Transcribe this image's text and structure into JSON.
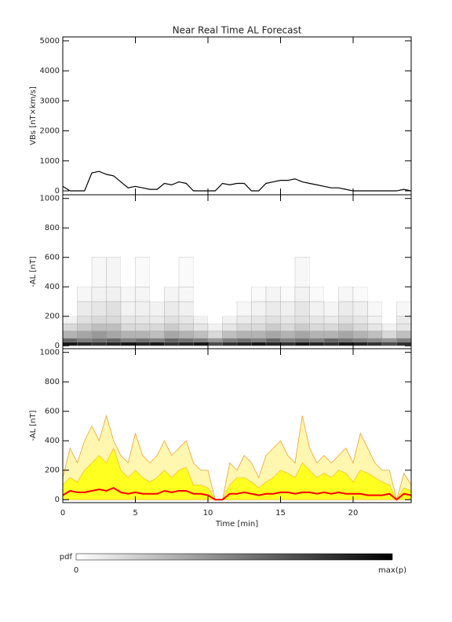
{
  "chart_data": [
    {
      "type": "line",
      "title": "Near Real Time AL Forecast",
      "ylabel": "VBs [nT×km/s]",
      "x": [
        0,
        0.5,
        1,
        1.5,
        2,
        2.5,
        3,
        3.5,
        4,
        4.5,
        5,
        5.5,
        6,
        6.5,
        7,
        7.5,
        8,
        8.5,
        9,
        9.5,
        10,
        10.5,
        11,
        11.5,
        12,
        12.5,
        13,
        13.5,
        14,
        14.5,
        15,
        15.5,
        16,
        16.5,
        17,
        17.5,
        18,
        18.5,
        19,
        19.5,
        20,
        20.5,
        21,
        21.5,
        22,
        22.5,
        23,
        23.5,
        24
      ],
      "values": [
        150,
        0,
        0,
        0,
        600,
        650,
        550,
        500,
        300,
        100,
        150,
        100,
        50,
        50,
        250,
        200,
        300,
        250,
        0,
        0,
        0,
        0,
        250,
        200,
        250,
        250,
        0,
        0,
        250,
        300,
        350,
        350,
        400,
        300,
        250,
        200,
        150,
        100,
        100,
        50,
        0,
        0,
        0,
        0,
        0,
        0,
        0,
        50,
        0
      ],
      "color": "#000000",
      "xlim": [
        0,
        24
      ],
      "xticks": [
        0,
        5,
        10,
        15,
        20
      ],
      "ylim": [
        -130,
        5130
      ],
      "yticks": [
        0,
        1000,
        2000,
        3000,
        4000,
        5000
      ]
    },
    {
      "type": "heatmap",
      "ylabel": "-AL [nT]",
      "x_bins": [
        0,
        1,
        2,
        3,
        4,
        5,
        6,
        7,
        8,
        9,
        10,
        11,
        12,
        13,
        14,
        15,
        16,
        17,
        18,
        19,
        20,
        21,
        22,
        23,
        24
      ],
      "y_bins": [
        0,
        25,
        50,
        100,
        150,
        200,
        300,
        400,
        600
      ],
      "z": [
        [
          0.9,
          0.85,
          0.8,
          0.85,
          0.9,
          0.85,
          0.9,
          0.8,
          0.85,
          0.9,
          0.7,
          0.8,
          0.85,
          0.9,
          0.85,
          0.8,
          0.9,
          0.85,
          0.8,
          0.9,
          0.85,
          0.8,
          0.7,
          0.8
        ],
        [
          0.6,
          0.5,
          0.55,
          0.6,
          0.5,
          0.55,
          0.5,
          0.6,
          0.55,
          0.5,
          0.4,
          0.5,
          0.55,
          0.5,
          0.6,
          0.5,
          0.55,
          0.5,
          0.6,
          0.55,
          0.5,
          0.45,
          0.4,
          0.5
        ],
        [
          0.3,
          0.35,
          0.4,
          0.35,
          0.3,
          0.3,
          0.25,
          0.35,
          0.3,
          0.25,
          0.15,
          0.25,
          0.3,
          0.3,
          0.35,
          0.3,
          0.35,
          0.3,
          0.3,
          0.35,
          0.3,
          0.25,
          0.15,
          0.25
        ],
        [
          0.15,
          0.2,
          0.25,
          0.25,
          0.15,
          0.15,
          0.15,
          0.2,
          0.15,
          0.1,
          0.05,
          0.1,
          0.15,
          0.15,
          0.2,
          0.15,
          0.2,
          0.15,
          0.15,
          0.2,
          0.15,
          0.1,
          0.05,
          0.1
        ],
        [
          0.05,
          0.12,
          0.15,
          0.15,
          0.1,
          0.1,
          0.08,
          0.12,
          0.1,
          0.05,
          0,
          0.05,
          0.08,
          0.1,
          0.12,
          0.1,
          0.12,
          0.1,
          0.08,
          0.12,
          0.1,
          0.05,
          0,
          0.08
        ],
        [
          0,
          0.08,
          0.1,
          0.12,
          0.05,
          0.06,
          0.05,
          0.08,
          0.06,
          0,
          0,
          0,
          0.03,
          0.05,
          0.08,
          0.06,
          0.1,
          0.05,
          0.04,
          0.08,
          0.06,
          0.03,
          0,
          0.03
        ],
        [
          0,
          0.03,
          0.05,
          0.06,
          0.03,
          0.04,
          0,
          0.04,
          0.03,
          0,
          0,
          0,
          0,
          0.02,
          0.04,
          0.02,
          0.05,
          0.02,
          0,
          0.03,
          0.02,
          0,
          0,
          0
        ],
        [
          0,
          0,
          0.03,
          0.04,
          0,
          0.02,
          0,
          0,
          0.02,
          0,
          0,
          0,
          0,
          0,
          0,
          0,
          0.03,
          0,
          0,
          0,
          0,
          0,
          0,
          0
        ]
      ],
      "colorbar": {
        "label": "pdf",
        "min_label": "0",
        "max_label": "max(p)"
      },
      "xlim": [
        0,
        24
      ],
      "xticks": [
        0,
        5,
        10,
        15,
        20
      ],
      "ylim": [
        -20,
        1025
      ],
      "yticks": [
        0,
        200,
        400,
        600,
        800,
        1000
      ]
    },
    {
      "type": "band",
      "ylabel": "-AL [nT]",
      "xlabel": "Time [min]",
      "x": [
        0,
        0.5,
        1,
        1.5,
        2,
        2.5,
        3,
        3.5,
        4,
        4.5,
        5,
        5.5,
        6,
        6.5,
        7,
        7.5,
        8,
        8.5,
        9,
        9.5,
        10,
        10.5,
        11,
        11.5,
        12,
        12.5,
        13,
        13.5,
        14,
        14.5,
        15,
        15.5,
        16,
        16.5,
        17,
        17.5,
        18,
        18.5,
        19,
        19.5,
        20,
        20.5,
        21,
        21.5,
        22,
        22.5,
        23,
        23.5,
        24
      ],
      "series": [
        {
          "style": "area",
          "color": "#fff7b0",
          "stroke": "#f0a030",
          "values": [
            150,
            350,
            250,
            400,
            500,
            400,
            570,
            400,
            300,
            250,
            450,
            300,
            250,
            300,
            400,
            300,
            350,
            400,
            250,
            200,
            200,
            0,
            0,
            250,
            200,
            300,
            250,
            150,
            300,
            350,
            400,
            300,
            250,
            570,
            350,
            250,
            300,
            250,
            300,
            350,
            250,
            450,
            350,
            250,
            200,
            200,
            0,
            180,
            100
          ]
        },
        {
          "style": "area",
          "color": "#ffff20",
          "stroke": "#f5c030",
          "values": [
            100,
            150,
            120,
            200,
            250,
            300,
            250,
            350,
            200,
            150,
            200,
            150,
            120,
            150,
            200,
            150,
            200,
            220,
            100,
            100,
            80,
            0,
            0,
            100,
            150,
            150,
            120,
            80,
            120,
            150,
            200,
            180,
            150,
            250,
            200,
            150,
            180,
            150,
            200,
            180,
            120,
            200,
            180,
            150,
            120,
            100,
            0,
            80,
            60
          ]
        },
        {
          "style": "line",
          "color": "#ff0000",
          "values": [
            30,
            60,
            50,
            50,
            60,
            70,
            60,
            80,
            50,
            40,
            50,
            40,
            40,
            40,
            60,
            50,
            60,
            60,
            40,
            40,
            30,
            0,
            0,
            40,
            40,
            50,
            40,
            30,
            40,
            40,
            50,
            50,
            40,
            50,
            50,
            40,
            50,
            40,
            50,
            40,
            40,
            40,
            30,
            30,
            30,
            40,
            0,
            40,
            30
          ]
        }
      ],
      "xlim": [
        0,
        24
      ],
      "xticks": [
        0,
        5,
        10,
        15,
        20
      ],
      "ylim": [
        -20,
        1025
      ],
      "yticks": [
        0,
        200,
        400,
        600,
        800,
        1000
      ]
    }
  ]
}
